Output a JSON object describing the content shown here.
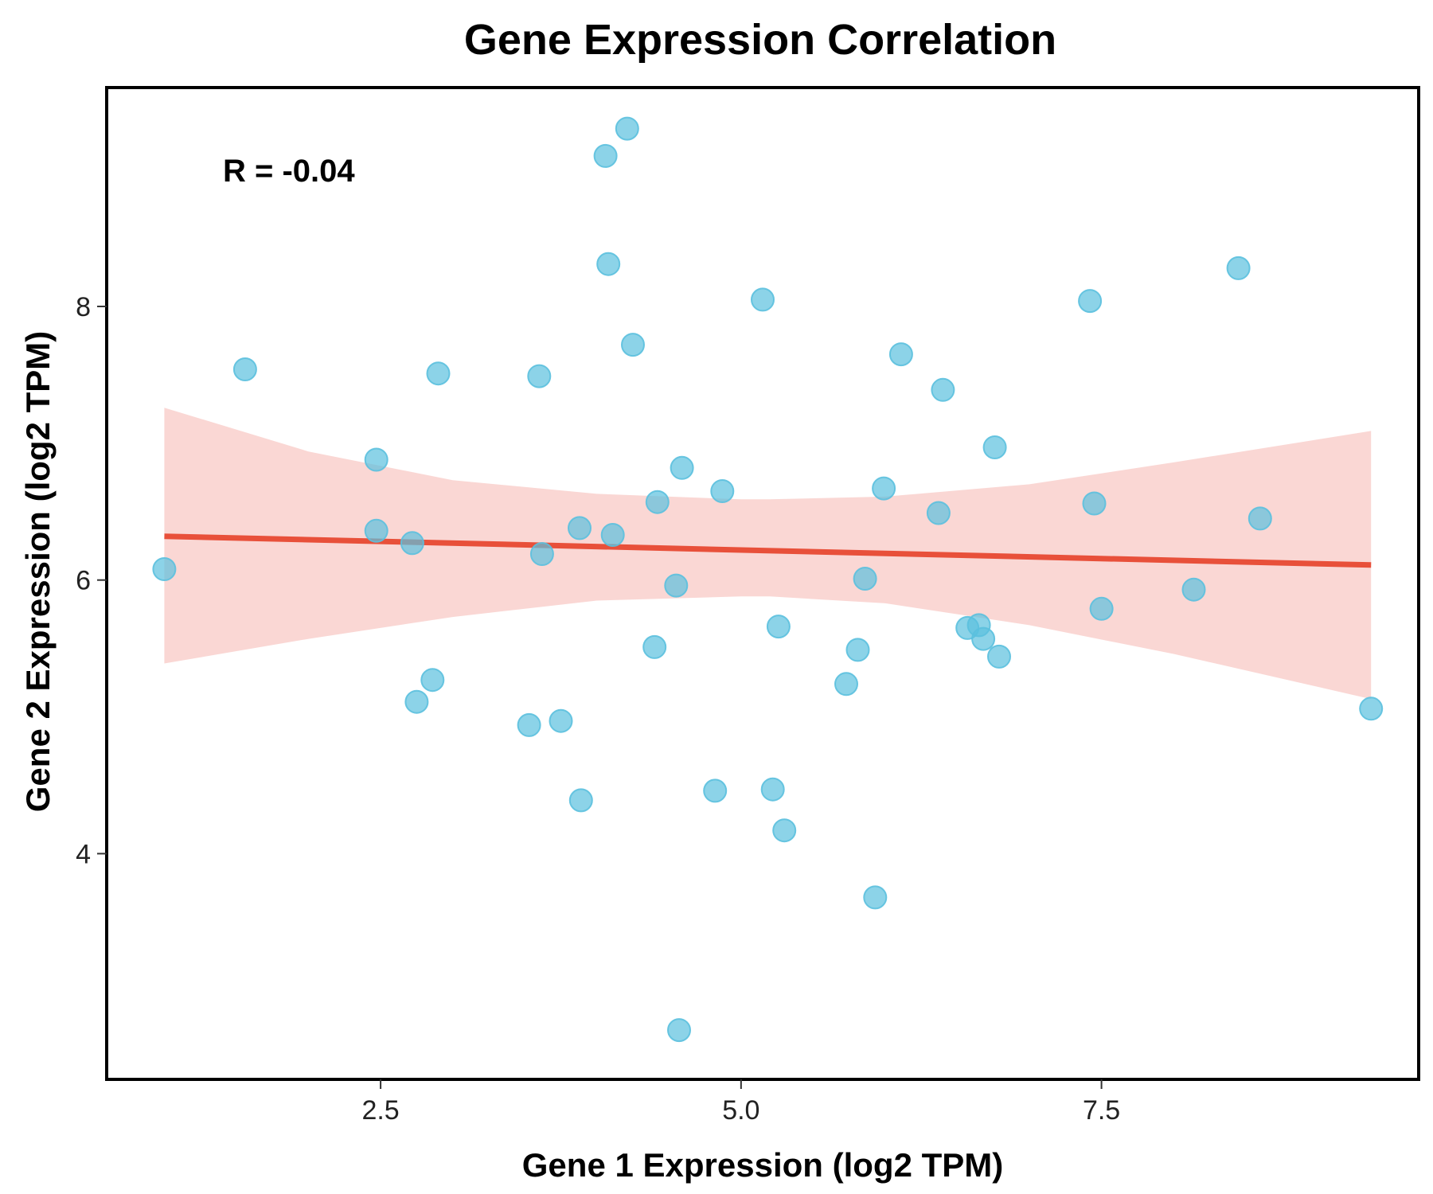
{
  "chart_data": {
    "type": "scatter",
    "title": "Gene Expression Correlation",
    "xlabel": "Gene 1 Expression (log2 TPM)",
    "ylabel": "Gene 2 Expression (log2 TPM)",
    "xlim": [
      0.6,
      9.7
    ],
    "ylim": [
      2.35,
      9.6
    ],
    "xticks": [
      2.5,
      5.0,
      7.5
    ],
    "xtick_labels": [
      "2.5",
      "5.0",
      "7.5"
    ],
    "yticks": [
      4,
      6,
      8
    ],
    "ytick_labels": [
      "4",
      "6",
      "8"
    ],
    "annotation": "R = -0.04",
    "grid": false,
    "legend": "none",
    "colors": {
      "points": "#5bc0de",
      "fit_line": "#e8503a",
      "band": "#f5b7b1",
      "axes": "#000000"
    },
    "points": [
      {
        "x": 1.0,
        "y": 6.08
      },
      {
        "x": 1.56,
        "y": 7.54
      },
      {
        "x": 2.47,
        "y": 6.88
      },
      {
        "x": 2.47,
        "y": 6.36
      },
      {
        "x": 2.72,
        "y": 6.27
      },
      {
        "x": 2.75,
        "y": 5.11
      },
      {
        "x": 2.86,
        "y": 5.27
      },
      {
        "x": 2.9,
        "y": 7.51
      },
      {
        "x": 3.53,
        "y": 4.94
      },
      {
        "x": 3.6,
        "y": 7.49
      },
      {
        "x": 3.62,
        "y": 6.19
      },
      {
        "x": 3.75,
        "y": 4.97
      },
      {
        "x": 3.88,
        "y": 6.38
      },
      {
        "x": 3.89,
        "y": 4.39
      },
      {
        "x": 4.06,
        "y": 9.1
      },
      {
        "x": 4.08,
        "y": 8.31
      },
      {
        "x": 4.11,
        "y": 6.33
      },
      {
        "x": 4.21,
        "y": 9.3
      },
      {
        "x": 4.25,
        "y": 7.72
      },
      {
        "x": 4.4,
        "y": 5.51
      },
      {
        "x": 4.42,
        "y": 6.57
      },
      {
        "x": 4.55,
        "y": 5.96
      },
      {
        "x": 4.59,
        "y": 6.82
      },
      {
        "x": 4.57,
        "y": 2.71
      },
      {
        "x": 4.82,
        "y": 4.46
      },
      {
        "x": 4.87,
        "y": 6.65
      },
      {
        "x": 5.15,
        "y": 8.05
      },
      {
        "x": 5.22,
        "y": 4.47
      },
      {
        "x": 5.26,
        "y": 5.66
      },
      {
        "x": 5.3,
        "y": 4.17
      },
      {
        "x": 5.73,
        "y": 5.24
      },
      {
        "x": 5.81,
        "y": 5.49
      },
      {
        "x": 5.86,
        "y": 6.01
      },
      {
        "x": 5.93,
        "y": 3.68
      },
      {
        "x": 5.99,
        "y": 6.67
      },
      {
        "x": 6.11,
        "y": 7.65
      },
      {
        "x": 6.37,
        "y": 6.49
      },
      {
        "x": 6.4,
        "y": 7.39
      },
      {
        "x": 6.57,
        "y": 5.65
      },
      {
        "x": 6.65,
        "y": 5.67
      },
      {
        "x": 6.68,
        "y": 5.57
      },
      {
        "x": 6.76,
        "y": 6.97
      },
      {
        "x": 6.79,
        "y": 5.44
      },
      {
        "x": 7.42,
        "y": 8.04
      },
      {
        "x": 7.45,
        "y": 6.56
      },
      {
        "x": 7.5,
        "y": 5.79
      },
      {
        "x": 8.14,
        "y": 5.93
      },
      {
        "x": 8.45,
        "y": 8.28
      },
      {
        "x": 8.6,
        "y": 6.45
      },
      {
        "x": 9.37,
        "y": 5.06
      }
    ],
    "fit_line": {
      "x": [
        1.0,
        9.37
      ],
      "y": [
        6.32,
        6.11
      ]
    },
    "confidence_band": {
      "x": [
        1.0,
        2.0,
        3.0,
        4.0,
        5.0,
        5.2,
        6.0,
        7.0,
        8.0,
        9.37
      ],
      "upper": [
        7.26,
        6.94,
        6.73,
        6.63,
        6.59,
        6.59,
        6.61,
        6.7,
        6.86,
        7.09
      ],
      "lower": [
        5.39,
        5.57,
        5.73,
        5.85,
        5.88,
        5.88,
        5.83,
        5.67,
        5.46,
        5.13
      ]
    }
  }
}
